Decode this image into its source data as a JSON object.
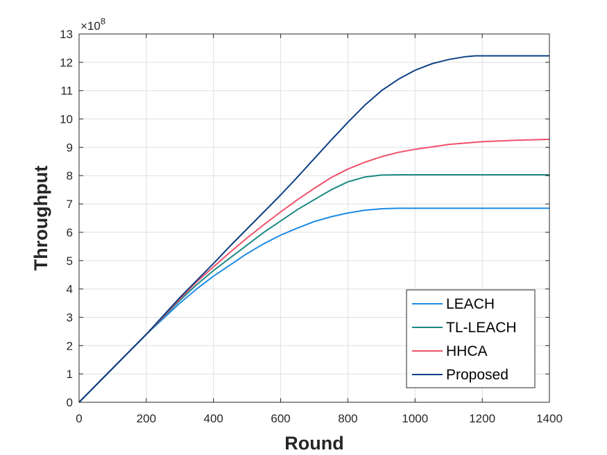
{
  "chart_data": {
    "type": "line",
    "xlabel": "Round",
    "ylabel": "Throughput",
    "y_multiplier": {
      "base": "×10",
      "exponent": "8"
    },
    "xlim": [
      0,
      1400
    ],
    "ylim": [
      0,
      13
    ],
    "x_ticks": [
      0,
      200,
      400,
      600,
      800,
      1000,
      1200,
      1400
    ],
    "y_ticks": [
      0,
      1,
      2,
      3,
      4,
      5,
      6,
      7,
      8,
      9,
      10,
      11,
      12,
      13
    ],
    "grid": true,
    "legend_position": "bottom-right",
    "series": [
      {
        "name": "LEACH",
        "color": "#1a8ae6",
        "x": [
          0,
          100,
          200,
          250,
          300,
          350,
          400,
          450,
          500,
          550,
          600,
          650,
          700,
          750,
          800,
          850,
          900,
          950,
          1000,
          1100,
          1200,
          1300,
          1400
        ],
        "y": [
          0,
          1.2,
          2.4,
          2.95,
          3.5,
          4.0,
          4.45,
          4.85,
          5.25,
          5.6,
          5.9,
          6.15,
          6.38,
          6.55,
          6.68,
          6.78,
          6.83,
          6.85,
          6.85,
          6.85,
          6.85,
          6.85,
          6.85
        ]
      },
      {
        "name": "TL-LEACH",
        "color": "#1a8a82",
        "x": [
          0,
          100,
          200,
          250,
          300,
          350,
          400,
          450,
          500,
          550,
          600,
          650,
          700,
          750,
          800,
          850,
          900,
          950,
          1000,
          1100,
          1200,
          1300,
          1400
        ],
        "y": [
          0,
          1.2,
          2.4,
          3.0,
          3.6,
          4.15,
          4.65,
          5.1,
          5.55,
          6.0,
          6.4,
          6.8,
          7.15,
          7.5,
          7.78,
          7.95,
          8.02,
          8.03,
          8.03,
          8.03,
          8.03,
          8.03,
          8.03
        ]
      },
      {
        "name": "HHCA",
        "color": "#f0506a",
        "x": [
          0,
          100,
          200,
          250,
          300,
          350,
          400,
          450,
          500,
          550,
          600,
          650,
          700,
          750,
          800,
          850,
          900,
          950,
          1000,
          1100,
          1200,
          1300,
          1400
        ],
        "y": [
          0,
          1.2,
          2.4,
          3.02,
          3.65,
          4.25,
          4.78,
          5.3,
          5.8,
          6.27,
          6.72,
          7.15,
          7.55,
          7.93,
          8.23,
          8.47,
          8.67,
          8.82,
          8.93,
          9.1,
          9.2,
          9.25,
          9.28
        ]
      },
      {
        "name": "Proposed",
        "color": "#0b3f85",
        "x": [
          0,
          100,
          200,
          250,
          300,
          350,
          400,
          450,
          500,
          550,
          600,
          650,
          700,
          750,
          800,
          850,
          900,
          950,
          1000,
          1050,
          1100,
          1150,
          1180,
          1200,
          1300,
          1400
        ],
        "y": [
          0,
          1.2,
          2.4,
          3.05,
          3.7,
          4.3,
          4.9,
          5.52,
          6.12,
          6.72,
          7.32,
          7.95,
          8.6,
          9.25,
          9.88,
          10.48,
          11.0,
          11.4,
          11.72,
          11.95,
          12.1,
          12.2,
          12.23,
          12.23,
          12.23,
          12.23
        ]
      }
    ]
  }
}
